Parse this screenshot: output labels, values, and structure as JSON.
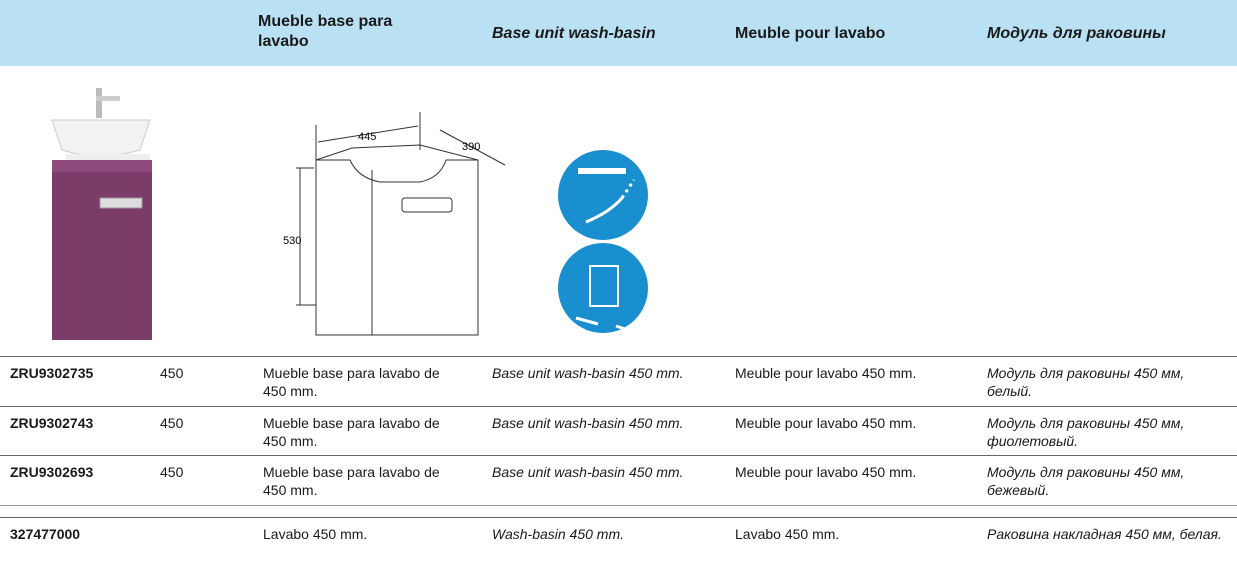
{
  "header": {
    "columns": [
      "Mueble base para lavabo",
      "Base unit wash-basin",
      "Meuble pour lavabo",
      "Модуль для раковины"
    ]
  },
  "drawing": {
    "width": "445",
    "depth": "390",
    "height": "530"
  },
  "table": {
    "rows": [
      [
        "ZRU9302735",
        "450",
        "Mueble base para lavabo de 450 mm.",
        "Base unit wash-basin 450 mm.",
        "Meuble pour lavabo 450 mm.",
        "Модуль для раковины 450 мм, белый."
      ],
      [
        "ZRU9302743",
        "450",
        "Mueble base para lavabo de 450 mm.",
        "Base unit wash-basin 450 mm.",
        "Meuble pour lavabo 450 mm.",
        "Модуль для раковины 450 мм, фиолетовый."
      ],
      [
        "ZRU9302693",
        "450",
        "Mueble base para lavabo de 450 mm.",
        "Base unit wash-basin 450 mm.",
        "Meuble pour lavabo 450 mm.",
        "Модуль для раковины 450 мм, бежевый."
      ],
      [
        "327477000",
        "",
        "Lavabo 450 mm.",
        "Wash-basin 450 mm.",
        "Lavabo 450 mm.",
        "Раковина накладная 450 мм, белая."
      ]
    ]
  }
}
